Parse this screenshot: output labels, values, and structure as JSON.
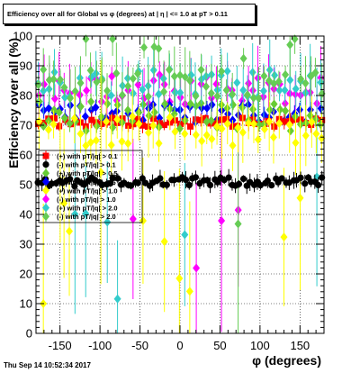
{
  "chart_data": {
    "type": "scatter",
    "title": "Efficiency over all for Global vs φ (degrees) at | η | <= 1.0 at pT > 0.11",
    "xlabel": "φ (degrees)",
    "ylabel": "Efficiency over all (%)",
    "xlim": [
      -180,
      180
    ],
    "ylim": [
      0,
      100
    ],
    "x_ticks": [
      "-150",
      "-100",
      "-50",
      "0",
      "50",
      "100",
      "150"
    ],
    "y_ticks": [
      "0",
      "10",
      "20",
      "30",
      "40",
      "50",
      "60",
      "70",
      "80",
      "90",
      "100"
    ],
    "grid": true,
    "legend_position": "left-middle",
    "series": [
      {
        "name": "(+) with pT(q) > 0.1",
        "legend_label": "(+) with pT/|q| > 0.1",
        "color": "#ff0000",
        "marker": "square",
        "approx_level": 71
      },
      {
        "name": "(-) with pT/|q| > 0.1",
        "legend_label": "(-) with pT/|q| > 0.1",
        "color": "#000000",
        "marker": "circle",
        "approx_level": 51
      },
      {
        "name": "(+) with pT/|q| > 0.5",
        "legend_label": "(+) with pT/|q| > 0.5",
        "color": "#66cc33",
        "marker": "diamond",
        "approx_level": 73
      },
      {
        "name": "(-) with pT/|q| > 0.5",
        "legend_label": "(-) with pT/|q| > 0.5",
        "color": "#0000ff",
        "marker": "diamond",
        "approx_level": 74
      },
      {
        "name": "(+) with pT/|q| > 1.0",
        "legend_label": "(+) with pT/|q| > 1.0",
        "color": "#ffff00",
        "marker": "diamond",
        "approx_level": 68
      },
      {
        "name": "(-) with pT/|q| > 1.0",
        "legend_label": "(-) with pT/|q| > 1.0",
        "color": "#ff00ff",
        "marker": "diamond",
        "approx_level": 82
      },
      {
        "name": "(+) with pT/|q| > 2.0",
        "legend_label": "(+) with pT/|q| > 2.0",
        "color": "#33cccc",
        "marker": "diamond",
        "approx_level": 84
      },
      {
        "name": "(-) with pT/|q| > 2.0",
        "legend_label": "(-) with pT/|q| > 2.0",
        "color": "#66cc55",
        "marker": "diamond",
        "approx_level": 84
      }
    ]
  },
  "footer": {
    "date": "Thu Sep 14 10:52:34 2017"
  }
}
